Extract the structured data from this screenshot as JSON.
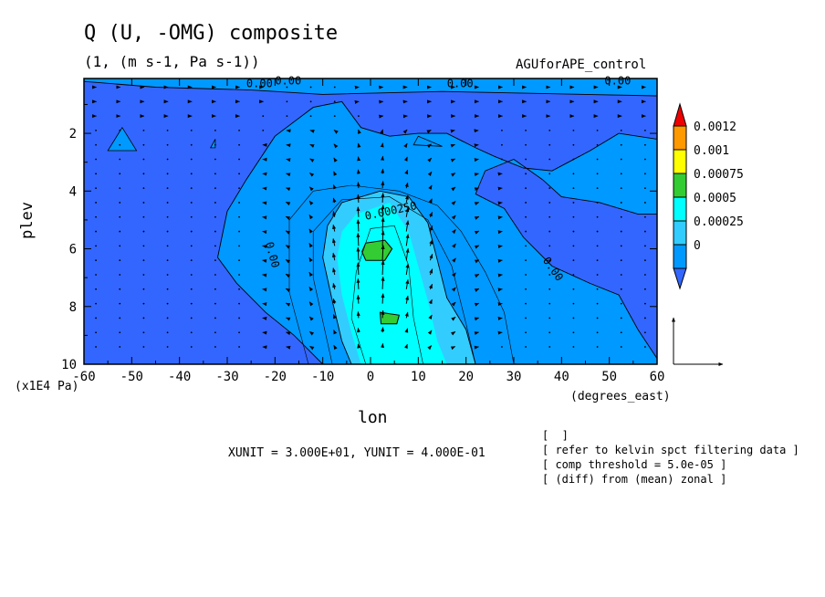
{
  "header": {
    "title": "Q (U, -OMG) composite",
    "subtitle": "(1, (m s-1, Pa s-1))",
    "experiment": "AGUforAPE_control"
  },
  "axes": {
    "y_label": "plev",
    "y_unit": "(x1E4 Pa)",
    "x_label": "lon",
    "x_unit": "(degrees_east)"
  },
  "vector_units": "XUNIT = 3.000E+01, YUNIT = 4.000E-01",
  "notes": [
    "[  ]",
    "[ refer to kelvin spct filtering data ]",
    "[ comp threshold = 5.0e-05 ]",
    "[ (diff) from (mean) zonal ]"
  ],
  "chart_data": {
    "type": "heatmap",
    "title": "Q (U, -OMG) composite",
    "x": {
      "label": "lon",
      "unit": "(degrees_east)",
      "range": [
        -60,
        60
      ],
      "ticks": [
        -60,
        -50,
        -40,
        -30,
        -20,
        -10,
        0,
        10,
        20,
        30,
        40,
        50,
        60
      ]
    },
    "y": {
      "label": "plev",
      "unit": "(x1E4 Pa)",
      "range": [
        0.1,
        10
      ],
      "inverted": true,
      "ticks": [
        2,
        4,
        6,
        8,
        10
      ]
    },
    "colorbar": {
      "levels": [
        "0",
        "0.00025",
        "0.0005",
        "0.00075",
        "0.001",
        "0.0012"
      ],
      "colors": [
        "#3366ff",
        "#0099ff",
        "#33ccff",
        "#00ffff",
        "#33cc33",
        "#ffff00",
        "#ff9900",
        "#ee0000"
      ]
    },
    "contour_labels": [
      {
        "text": "0.00",
        "lon": -26,
        "plev": 0.4
      },
      {
        "text": "0.00",
        "lon": -20,
        "plev": 0.3
      },
      {
        "text": "0.00",
        "lon": 16,
        "plev": 0.4
      },
      {
        "text": "0.00",
        "lon": 49,
        "plev": 0.3
      },
      {
        "text": "0.000250",
        "lon": -1,
        "plev": 5.0
      },
      {
        "text": "0.00",
        "lon": -22,
        "plev": 5.8
      },
      {
        "text": "0.00",
        "lon": 36,
        "plev": 6.4
      }
    ],
    "vectors": {
      "x_unit": 30.0,
      "y_unit": 0.4
    }
  }
}
